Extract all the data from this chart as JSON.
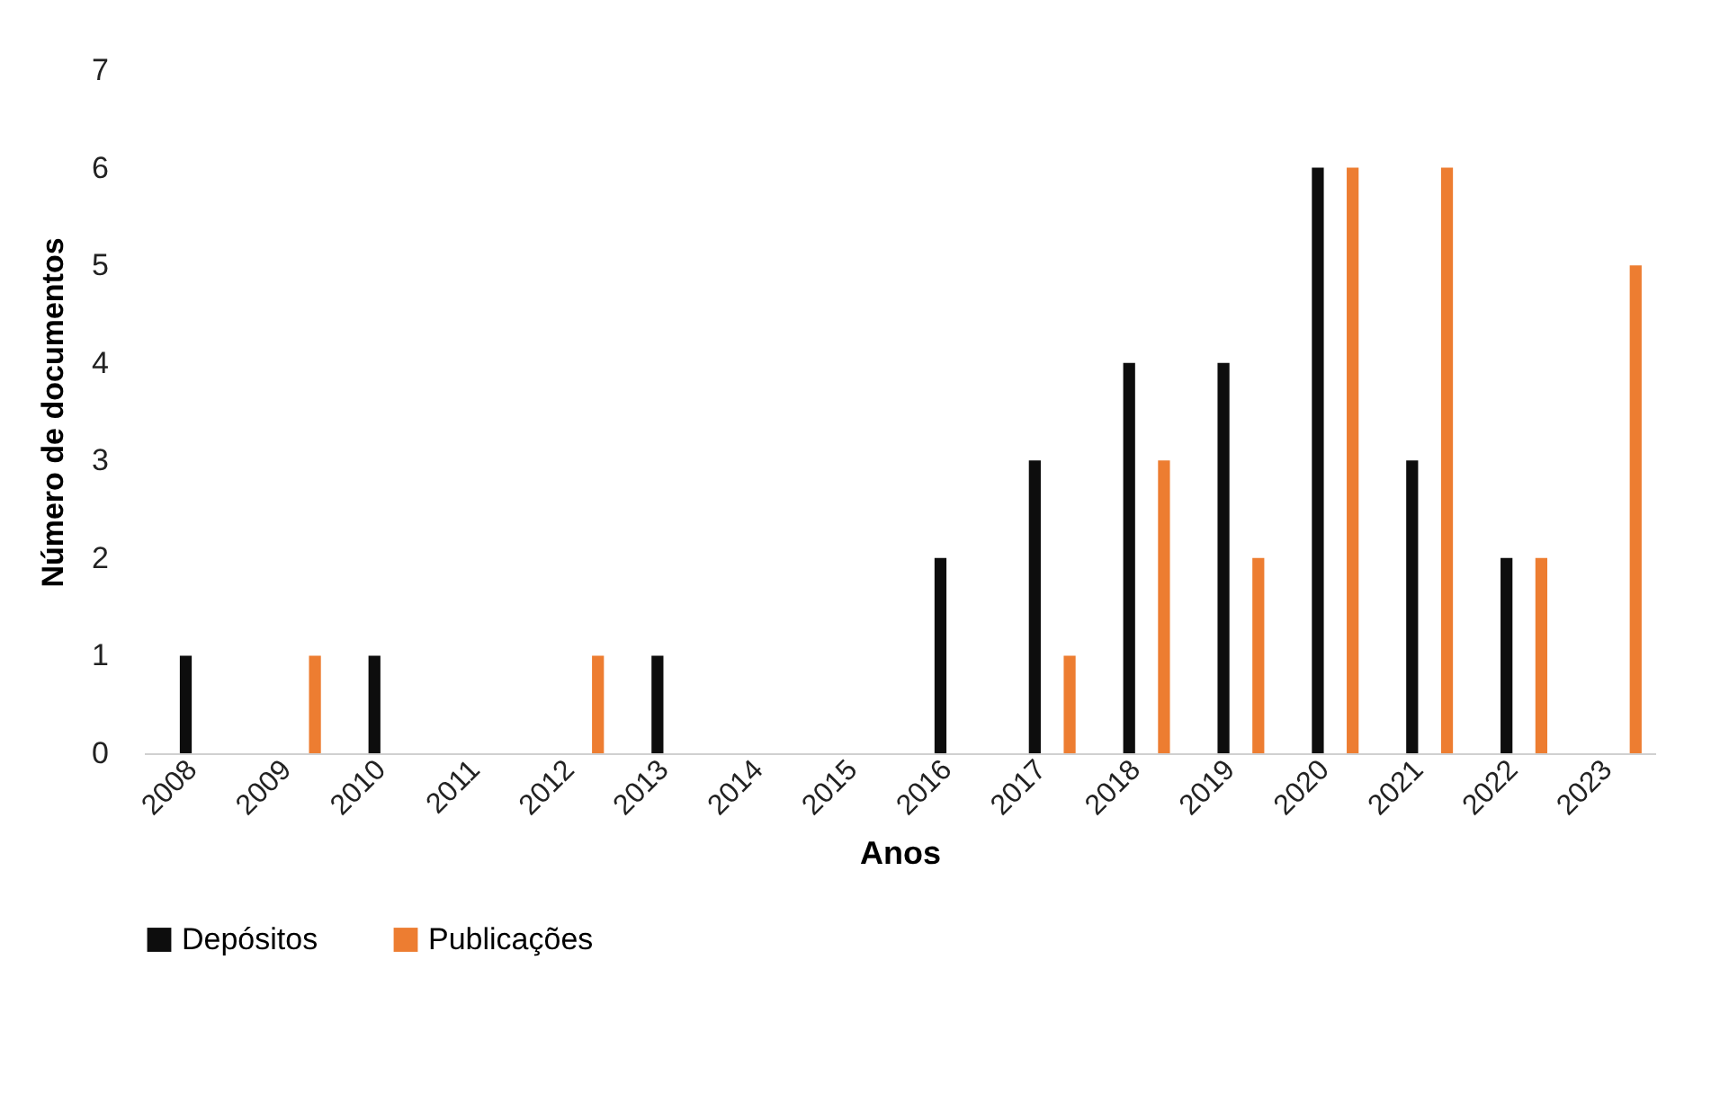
{
  "chart_data": {
    "type": "bar",
    "xlabel": "Anos",
    "ylabel": "Número de documentos",
    "categories": [
      "2008",
      "2009",
      "2010",
      "2011",
      "2012",
      "2013",
      "2014",
      "2015",
      "2016",
      "2017",
      "2018",
      "2019",
      "2020",
      "2021",
      "2022",
      "2023"
    ],
    "series": [
      {
        "name": "Depósitos",
        "color": "#0d0d0d",
        "values": [
          1,
          0,
          1,
          0,
          0,
          1,
          0,
          0,
          2,
          3,
          4,
          4,
          6,
          3,
          2,
          0
        ]
      },
      {
        "name": "Publicações",
        "color": "#ed7d31",
        "values": [
          0,
          1,
          0,
          0,
          1,
          0,
          0,
          0,
          0,
          1,
          3,
          2,
          6,
          6,
          2,
          5
        ]
      }
    ],
    "ylim": [
      0,
      7
    ],
    "yticks": [
      0,
      1,
      2,
      3,
      4,
      5,
      6,
      7
    ],
    "grid": false,
    "legend": "bottom"
  }
}
